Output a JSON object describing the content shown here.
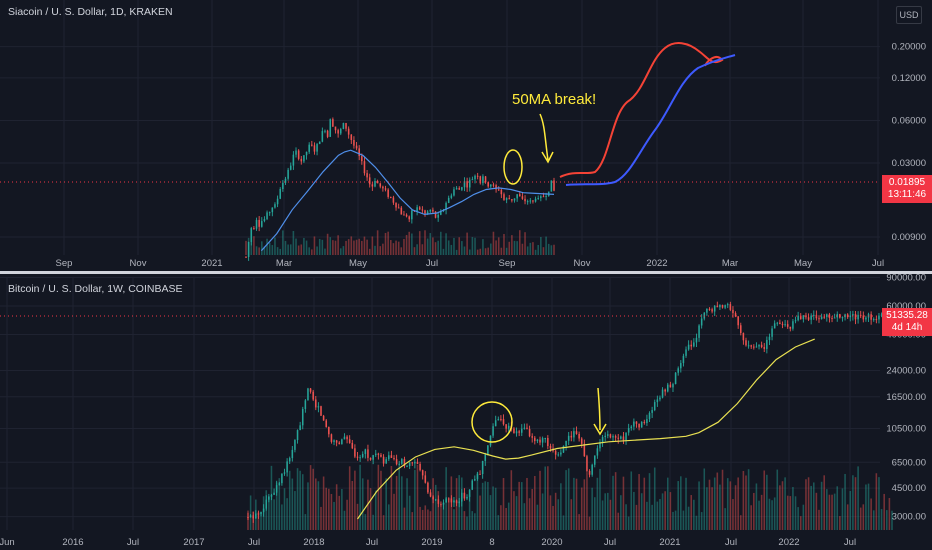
{
  "chart_data": [
    {
      "type": "candlestick",
      "title": "Siacoin / U. S. Dollar, 1D, KRAKEN",
      "currency": "USD",
      "scale": "log",
      "ylim": [
        0.0066,
        0.34
      ],
      "y_ticks": [
        {
          "label": "0.20000",
          "value": 0.2
        },
        {
          "label": "0.12000",
          "value": 0.12
        },
        {
          "label": "0.06000",
          "value": 0.06
        },
        {
          "label": "0.03000",
          "value": 0.03
        },
        {
          "label": "0.00900",
          "value": 0.009
        }
      ],
      "x_ticks": [
        "Sep",
        "Nov",
        "2021",
        "Mar",
        "May",
        "Jul",
        "Sep",
        "Nov",
        "2022",
        "Mar",
        "May",
        "Jul"
      ],
      "last_price": "0.01895",
      "countdown": "13:11:46",
      "annotation": "50MA break!",
      "price_path": [
        [
          0.0,
          0.0065
        ],
        [
          0.006,
          0.0085
        ],
        [
          0.012,
          0.008
        ],
        [
          0.018,
          0.011
        ],
        [
          0.024,
          0.01
        ],
        [
          0.03,
          0.013
        ],
        [
          0.036,
          0.012
        ],
        [
          0.042,
          0.011
        ],
        [
          0.048,
          0.012
        ],
        [
          0.054,
          0.0115
        ],
        [
          0.06,
          0.012
        ],
        [
          0.066,
          0.013
        ],
        [
          0.072,
          0.0125
        ],
        [
          0.078,
          0.014
        ],
        [
          0.084,
          0.015
        ],
        [
          0.09,
          0.014
        ],
        [
          0.1,
          0.016
        ],
        [
          0.11,
          0.02
        ],
        [
          0.12,
          0.022
        ],
        [
          0.13,
          0.024
        ],
        [
          0.14,
          0.027
        ],
        [
          0.15,
          0.032
        ],
        [
          0.16,
          0.036
        ],
        [
          0.17,
          0.034
        ],
        [
          0.18,
          0.031
        ],
        [
          0.19,
          0.033
        ],
        [
          0.2,
          0.038
        ],
        [
          0.21,
          0.04
        ],
        [
          0.22,
          0.037
        ],
        [
          0.23,
          0.039
        ],
        [
          0.24,
          0.045
        ],
        [
          0.25,
          0.05
        ],
        [
          0.26,
          0.055
        ],
        [
          0.266,
          0.045
        ],
        [
          0.272,
          0.065
        ],
        [
          0.28,
          0.058
        ],
        [
          0.29,
          0.052
        ],
        [
          0.3,
          0.047
        ],
        [
          0.31,
          0.053
        ],
        [
          0.32,
          0.057
        ],
        [
          0.33,
          0.05
        ],
        [
          0.34,
          0.045
        ],
        [
          0.35,
          0.04
        ],
        [
          0.36,
          0.036
        ],
        [
          0.37,
          0.032
        ],
        [
          0.38,
          0.028
        ],
        [
          0.39,
          0.025
        ],
        [
          0.4,
          0.022
        ],
        [
          0.408,
          0.019
        ],
        [
          0.414,
          0.024
        ],
        [
          0.42,
          0.023
        ],
        [
          0.43,
          0.021
        ],
        [
          0.44,
          0.02
        ],
        [
          0.45,
          0.019
        ],
        [
          0.46,
          0.018
        ],
        [
          0.47,
          0.017
        ],
        [
          0.48,
          0.016
        ],
        [
          0.49,
          0.015
        ],
        [
          0.5,
          0.014
        ],
        [
          0.51,
          0.0125
        ],
        [
          0.52,
          0.013
        ],
        [
          0.53,
          0.012
        ],
        [
          0.54,
          0.0135
        ],
        [
          0.55,
          0.014
        ],
        [
          0.56,
          0.0145
        ],
        [
          0.57,
          0.014
        ],
        [
          0.58,
          0.013
        ],
        [
          0.59,
          0.0135
        ],
        [
          0.6,
          0.014
        ],
        [
          0.61,
          0.013
        ],
        [
          0.62,
          0.012
        ],
        [
          0.63,
          0.013
        ],
        [
          0.64,
          0.014
        ],
        [
          0.65,
          0.016
        ],
        [
          0.66,
          0.017
        ],
        [
          0.67,
          0.019
        ],
        [
          0.68,
          0.02
        ],
        [
          0.69,
          0.019
        ],
        [
          0.7,
          0.021
        ],
        [
          0.71,
          0.022
        ],
        [
          0.72,
          0.021
        ],
        [
          0.73,
          0.023
        ],
        [
          0.74,
          0.024
        ],
        [
          0.75,
          0.026
        ],
        [
          0.76,
          0.022
        ],
        [
          0.77,
          0.025
        ],
        [
          0.78,
          0.02
        ],
        [
          0.79,
          0.022
        ],
        [
          0.8,
          0.021
        ],
        [
          0.81,
          0.019
        ],
        [
          0.82,
          0.02
        ],
        [
          0.83,
          0.018
        ],
        [
          0.84,
          0.016
        ],
        [
          0.85,
          0.017
        ],
        [
          0.86,
          0.0165
        ],
        [
          0.87,
          0.017
        ],
        [
          0.88,
          0.018
        ],
        [
          0.89,
          0.017
        ],
        [
          0.9,
          0.016
        ],
        [
          0.91,
          0.0165
        ],
        [
          0.92,
          0.016
        ],
        [
          0.93,
          0.0155
        ],
        [
          0.94,
          0.0175
        ],
        [
          0.95,
          0.016
        ],
        [
          0.96,
          0.017
        ],
        [
          0.97,
          0.018
        ],
        [
          0.98,
          0.019
        ],
        [
          0.99,
          0.022
        ],
        [
          1.0,
          0.019
        ]
      ],
      "ma_path": [
        [
          0.05,
          0.0072
        ],
        [
          0.1,
          0.0095
        ],
        [
          0.15,
          0.014
        ],
        [
          0.2,
          0.019
        ],
        [
          0.25,
          0.026
        ],
        [
          0.3,
          0.034
        ],
        [
          0.32,
          0.036
        ],
        [
          0.34,
          0.037
        ],
        [
          0.38,
          0.034
        ],
        [
          0.42,
          0.028
        ],
        [
          0.46,
          0.022
        ],
        [
          0.5,
          0.017
        ],
        [
          0.54,
          0.014
        ],
        [
          0.58,
          0.013
        ],
        [
          0.62,
          0.0133
        ],
        [
          0.66,
          0.0145
        ],
        [
          0.7,
          0.016
        ],
        [
          0.74,
          0.018
        ],
        [
          0.78,
          0.0195
        ],
        [
          0.82,
          0.02
        ],
        [
          0.86,
          0.0195
        ],
        [
          0.9,
          0.0185
        ],
        [
          0.94,
          0.0183
        ],
        [
          1.0,
          0.018
        ]
      ]
    },
    {
      "type": "candlestick",
      "title": "Bitcoin / U. S. Dollar, 1W, COINBASE",
      "currency": "USD",
      "scale": "log",
      "ylim": [
        2700,
        92000
      ],
      "y_ticks": [
        {
          "label": "90000.00",
          "value": 90000
        },
        {
          "label": "60000.00",
          "value": 60000
        },
        {
          "label": "40000.00",
          "value": 40000
        },
        {
          "label": "24000.00",
          "value": 24000
        },
        {
          "label": "16500.00",
          "value": 16500
        },
        {
          "label": "10500.00",
          "value": 10500
        },
        {
          "label": "6500.00",
          "value": 6500
        },
        {
          "label": "4500.00",
          "value": 4500
        },
        {
          "label": "3000.00",
          "value": 3000
        }
      ],
      "x_ticks": [
        "Jun",
        "2016",
        "Jul",
        "2017",
        "Jul",
        "2018",
        "Jul",
        "2019",
        "8",
        "2020",
        "Jul",
        "2021",
        "Jul",
        "2022",
        "Jul"
      ],
      "last_price": "51335.28",
      "countdown": "4d 14h",
      "price_path": [
        [
          0.0,
          2900
        ],
        [
          0.01,
          3000
        ],
        [
          0.02,
          3300
        ],
        [
          0.03,
          3800
        ],
        [
          0.04,
          4400
        ],
        [
          0.05,
          5200
        ],
        [
          0.06,
          6200
        ],
        [
          0.07,
          8000
        ],
        [
          0.08,
          11000
        ],
        [
          0.09,
          16000
        ],
        [
          0.095,
          19500
        ],
        [
          0.1,
          16000
        ],
        [
          0.11,
          14000
        ],
        [
          0.12,
          11000
        ],
        [
          0.13,
          9000
        ],
        [
          0.14,
          8500
        ],
        [
          0.15,
          9500
        ],
        [
          0.16,
          8000
        ],
        [
          0.17,
          7000
        ],
        [
          0.18,
          7800
        ],
        [
          0.19,
          6800
        ],
        [
          0.2,
          7300
        ],
        [
          0.21,
          6500
        ],
        [
          0.22,
          7000
        ],
        [
          0.23,
          6400
        ],
        [
          0.24,
          6500
        ],
        [
          0.25,
          6300
        ],
        [
          0.26,
          6400
        ],
        [
          0.27,
          5500
        ],
        [
          0.28,
          4000
        ],
        [
          0.29,
          3700
        ],
        [
          0.3,
          3500
        ],
        [
          0.31,
          3900
        ],
        [
          0.32,
          3600
        ],
        [
          0.33,
          4000
        ],
        [
          0.34,
          4100
        ],
        [
          0.35,
          5000
        ],
        [
          0.36,
          5500
        ],
        [
          0.37,
          8000
        ],
        [
          0.38,
          10500
        ],
        [
          0.39,
          12500
        ],
        [
          0.4,
          11000
        ],
        [
          0.41,
          10000
        ],
        [
          0.42,
          9800
        ],
        [
          0.43,
          10500
        ],
        [
          0.44,
          9500
        ],
        [
          0.45,
          8500
        ],
        [
          0.46,
          9000
        ],
        [
          0.47,
          7500
        ],
        [
          0.48,
          7200
        ],
        [
          0.49,
          8000
        ],
        [
          0.5,
          9500
        ],
        [
          0.51,
          10000
        ],
        [
          0.52,
          8500
        ],
        [
          0.528,
          5000
        ],
        [
          0.536,
          6800
        ],
        [
          0.546,
          8800
        ],
        [
          0.556,
          9500
        ],
        [
          0.566,
          9200
        ],
        [
          0.576,
          9300
        ],
        [
          0.586,
          9400
        ],
        [
          0.596,
          11500
        ],
        [
          0.606,
          10800
        ],
        [
          0.616,
          11500
        ],
        [
          0.626,
          13500
        ],
        [
          0.636,
          15500
        ],
        [
          0.646,
          18500
        ],
        [
          0.656,
          19000
        ],
        [
          0.666,
          23500
        ],
        [
          0.676,
          29000
        ],
        [
          0.686,
          34000
        ],
        [
          0.696,
          39000
        ],
        [
          0.704,
          48000
        ],
        [
          0.712,
          57000
        ],
        [
          0.72,
          55000
        ],
        [
          0.728,
          59000
        ],
        [
          0.736,
          57500
        ],
        [
          0.744,
          60000
        ],
        [
          0.752,
          57000
        ],
        [
          0.76,
          47000
        ],
        [
          0.768,
          37500
        ],
        [
          0.776,
          35000
        ],
        [
          0.784,
          33000
        ],
        [
          0.792,
          34500
        ],
        [
          0.8,
          32000
        ],
        [
          0.808,
          39000
        ],
        [
          0.816,
          44500
        ],
        [
          0.824,
          48000
        ],
        [
          0.832,
          47000
        ],
        [
          0.84,
          43000
        ],
        [
          0.848,
          47500
        ],
        [
          0.856,
          51335
        ]
      ],
      "ma_path": [
        [
          0.17,
          2900
        ],
        [
          0.2,
          4300
        ],
        [
          0.23,
          5800
        ],
        [
          0.26,
          7000
        ],
        [
          0.29,
          7800
        ],
        [
          0.32,
          8100
        ],
        [
          0.35,
          7700
        ],
        [
          0.38,
          7100
        ],
        [
          0.4,
          6800
        ],
        [
          0.42,
          6900
        ],
        [
          0.44,
          7200
        ],
        [
          0.48,
          7900
        ],
        [
          0.52,
          8300
        ],
        [
          0.56,
          8700
        ],
        [
          0.6,
          8900
        ],
        [
          0.64,
          9100
        ],
        [
          0.68,
          9400
        ],
        [
          0.7,
          9900
        ],
        [
          0.73,
          11500
        ],
        [
          0.76,
          15000
        ],
        [
          0.79,
          21000
        ],
        [
          0.82,
          28000
        ],
        [
          0.85,
          33500
        ],
        [
          0.88,
          37500
        ]
      ]
    }
  ]
}
